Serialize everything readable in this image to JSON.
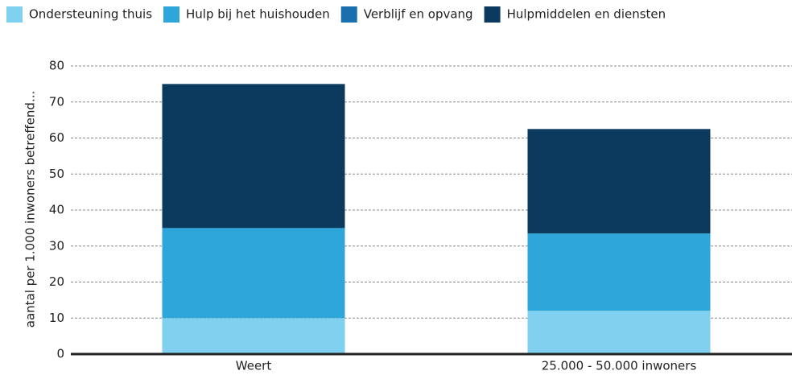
{
  "chart_data": {
    "type": "stacked_bar",
    "categories": [
      "Weert",
      "25.000 - 50.000 inwoners"
    ],
    "series": [
      {
        "name": "Ondersteuning thuis",
        "color": "#7fd1ef",
        "values": [
          10,
          12
        ]
      },
      {
        "name": "Hulp bij het huishouden",
        "color": "#2ea6da",
        "values": [
          25,
          21.5
        ]
      },
      {
        "name": "Verblijf en opvang",
        "color": "#1a6fae",
        "values": [
          0,
          0
        ]
      },
      {
        "name": "Hulpmiddelen en diensten",
        "color": "#0b3a5e",
        "values": [
          40,
          29
        ]
      }
    ],
    "y_label": "aantal per 1.000 inwoners betreffend...",
    "ylim": [
      0,
      80
    ],
    "yticks": [
      0,
      10,
      20,
      30,
      40,
      50,
      60,
      70,
      80
    ],
    "grid": true,
    "legend": "top"
  }
}
